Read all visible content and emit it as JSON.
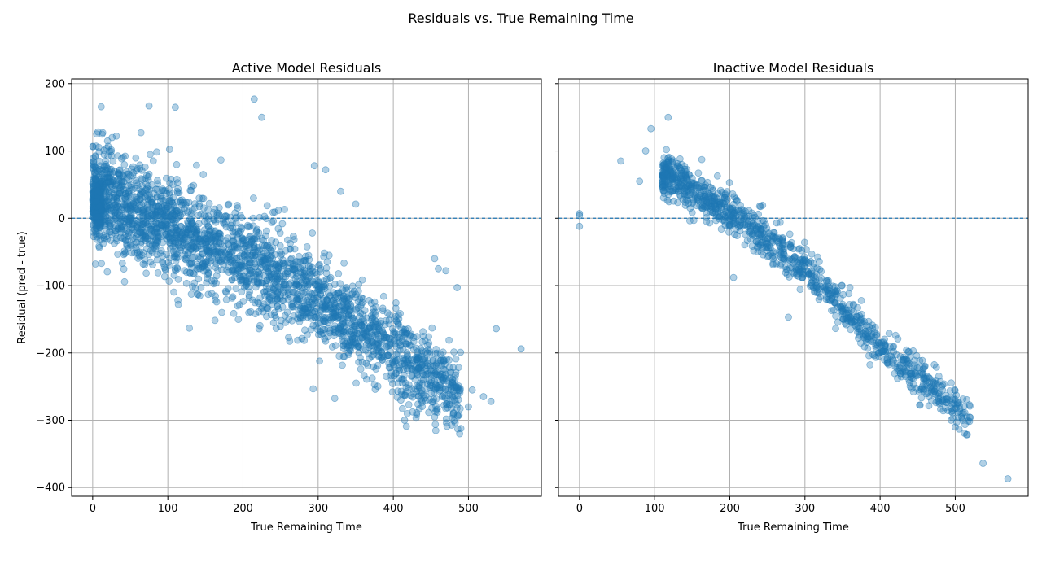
{
  "figure": {
    "suptitle": "Residuals vs. True Remaining Time"
  },
  "chart_data": [
    {
      "type": "scatter",
      "title": "Active Model Residuals",
      "xlabel": "True Remaining Time",
      "ylabel": "Residual (pred - true)",
      "xlim": [
        -28,
        597
      ],
      "ylim": [
        -413,
        207
      ],
      "xticks": [
        0,
        100,
        200,
        300,
        400,
        500
      ],
      "yticks": [
        200,
        100,
        0,
        -100,
        -200,
        -300,
        -400
      ],
      "grid": true,
      "reference_line_y": 0,
      "color": "#1f77b4",
      "alpha": 0.35,
      "band_trend": {
        "x_range": [
          0,
          490
        ],
        "center": [
          [
            0,
            40
          ],
          [
            100,
            -10
          ],
          [
            200,
            -60
          ],
          [
            300,
            -120
          ],
          [
            400,
            -200
          ],
          [
            490,
            -260
          ]
        ],
        "spread": 70
      },
      "outliers": [
        [
          455,
          -60
        ],
        [
          460,
          -75
        ],
        [
          470,
          -78
        ],
        [
          485,
          -103
        ],
        [
          537,
          -164
        ],
        [
          570,
          -194
        ],
        [
          330,
          40
        ],
        [
          350,
          21
        ],
        [
          310,
          72
        ],
        [
          295,
          78
        ],
        [
          225,
          150
        ],
        [
          215,
          177
        ],
        [
          75,
          167
        ],
        [
          110,
          165
        ],
        [
          410,
          -270
        ],
        [
          415,
          -300
        ],
        [
          455,
          -295
        ],
        [
          480,
          -290
        ],
        [
          500,
          -280
        ],
        [
          520,
          -265
        ],
        [
          530,
          -272
        ],
        [
          505,
          -255
        ],
        [
          440,
          -240
        ]
      ]
    },
    {
      "type": "scatter",
      "title": "Inactive Model Residuals",
      "xlabel": "True Remaining Time",
      "ylabel": "",
      "xlim": [
        -28,
        597
      ],
      "ylim": [
        -413,
        207
      ],
      "xticks": [
        0,
        100,
        200,
        300,
        400,
        500
      ],
      "yticks": [
        200,
        100,
        0,
        -100,
        -200,
        -300,
        -400
      ],
      "grid": true,
      "reference_line_y": 0,
      "color": "#1f77b4",
      "alpha": 0.35,
      "band_trend": {
        "x_range": [
          110,
          520
        ],
        "center": [
          [
            110,
            70
          ],
          [
            200,
            10
          ],
          [
            300,
            -75
          ],
          [
            400,
            -190
          ],
          [
            500,
            -280
          ],
          [
            520,
            -300
          ]
        ],
        "spread": 28
      },
      "outliers": [
        [
          0,
          7
        ],
        [
          0,
          4
        ],
        [
          0,
          -12
        ],
        [
          55,
          85
        ],
        [
          80,
          55
        ],
        [
          88,
          100
        ],
        [
          95,
          133
        ],
        [
          118,
          150
        ],
        [
          205,
          -88
        ],
        [
          278,
          -147
        ],
        [
          537,
          -364
        ],
        [
          570,
          -387
        ],
        [
          505,
          -313
        ],
        [
          500,
          -310
        ],
        [
          495,
          -282
        ],
        [
          510,
          -300
        ]
      ]
    }
  ]
}
